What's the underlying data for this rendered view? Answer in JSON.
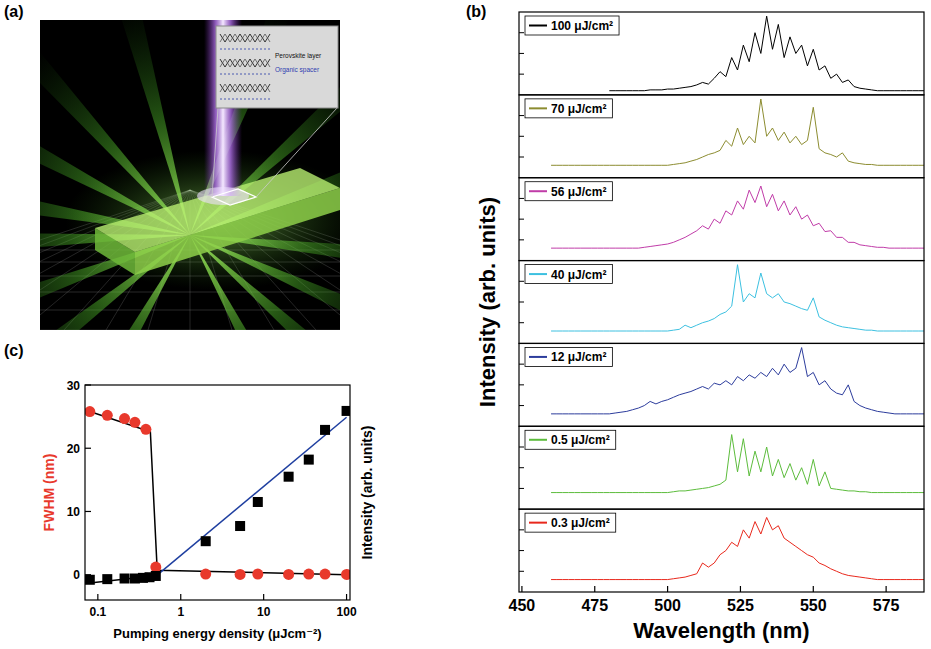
{
  "illustration": {
    "panel_label": "(a)",
    "inset_labels": [
      "Perovskite layer",
      "Organic spacer"
    ]
  },
  "chart_data": [
    {
      "type": "line",
      "panel_label": "(b)",
      "x_label": "Wavelength (nm)",
      "y_label": "Intensity (arb. units)",
      "xlim": [
        449,
        588
      ],
      "xticks": [
        450,
        475,
        500,
        525,
        550,
        575
      ],
      "ylim": [
        0,
        1
      ],
      "yticks": [
        0.25,
        0.5,
        0.75
      ],
      "tick_labels": "x",
      "grid": false,
      "legend": "upper left",
      "x": [
        460,
        462,
        464,
        466,
        468,
        470,
        472,
        474,
        476,
        478,
        480,
        482,
        484,
        486,
        488,
        490,
        492,
        494,
        496,
        498,
        500,
        502,
        504,
        506,
        508,
        510,
        512,
        514,
        516,
        518,
        520,
        522,
        524,
        526,
        528,
        530,
        532,
        534,
        536,
        538,
        540,
        542,
        544,
        546,
        548,
        550,
        552,
        554,
        556,
        558,
        560,
        562,
        564,
        566,
        568,
        570,
        572,
        574,
        576,
        578,
        580,
        582,
        584,
        586,
        588
      ],
      "series": [
        {
          "name": "100 μJ/cm²",
          "color": "#000000",
          "values": [
            null,
            null,
            null,
            null,
            null,
            null,
            null,
            null,
            null,
            null,
            0.05,
            0.05,
            0.05,
            0.05,
            0.05,
            0.05,
            0.05,
            0.06,
            0.06,
            0.06,
            0.07,
            0.07,
            0.08,
            0.09,
            0.1,
            0.12,
            0.15,
            0.13,
            0.2,
            0.28,
            0.22,
            0.45,
            0.3,
            0.6,
            0.4,
            0.75,
            0.5,
            0.95,
            0.55,
            0.85,
            0.45,
            0.7,
            0.5,
            0.6,
            0.35,
            0.55,
            0.3,
            0.35,
            0.2,
            0.25,
            0.15,
            0.18,
            0.1,
            0.08,
            0.07,
            0.06,
            0.05,
            0.05,
            0.05,
            0.05,
            0.05,
            0.05,
            0.05,
            0.05,
            0.05
          ]
        },
        {
          "name": "70 μJ/cm²",
          "color": "#8c8c30",
          "values": [
            0.15,
            0.15,
            0.15,
            0.15,
            0.15,
            0.15,
            0.15,
            0.15,
            0.15,
            0.15,
            0.15,
            0.15,
            0.15,
            0.15,
            0.15,
            0.15,
            0.15,
            0.15,
            0.15,
            0.15,
            0.15,
            0.16,
            0.17,
            0.18,
            0.2,
            0.22,
            0.25,
            0.28,
            0.3,
            0.33,
            0.45,
            0.38,
            0.6,
            0.4,
            0.5,
            0.42,
            0.95,
            0.5,
            0.6,
            0.45,
            0.55,
            0.42,
            0.5,
            0.4,
            0.45,
            0.85,
            0.35,
            0.3,
            0.28,
            0.25,
            0.3,
            0.2,
            0.18,
            0.17,
            0.16,
            0.16,
            0.15,
            0.15,
            0.15,
            0.15,
            0.15,
            0.15,
            0.15,
            0.15,
            0.15
          ]
        },
        {
          "name": "56 μJ/cm²",
          "color": "#c03ca8",
          "values": [
            0.15,
            0.15,
            0.15,
            0.15,
            0.15,
            0.15,
            0.15,
            0.15,
            0.15,
            0.15,
            0.15,
            0.15,
            0.15,
            0.15,
            0.15,
            0.15,
            0.16,
            0.17,
            0.18,
            0.19,
            0.2,
            0.22,
            0.25,
            0.28,
            0.32,
            0.36,
            0.42,
            0.38,
            0.5,
            0.45,
            0.6,
            0.55,
            0.72,
            0.62,
            0.85,
            0.7,
            0.9,
            0.65,
            0.8,
            0.6,
            0.72,
            0.55,
            0.65,
            0.5,
            0.55,
            0.42,
            0.45,
            0.35,
            0.36,
            0.28,
            0.28,
            0.22,
            0.22,
            0.19,
            0.18,
            0.17,
            0.16,
            0.16,
            0.15,
            0.15,
            0.15,
            0.15,
            0.15,
            0.15,
            0.15
          ]
        },
        {
          "name": "40 μJ/cm²",
          "color": "#3cc0e0",
          "values": [
            0.15,
            0.15,
            0.15,
            0.15,
            0.15,
            0.15,
            0.15,
            0.15,
            0.15,
            0.15,
            0.15,
            0.15,
            0.15,
            0.15,
            0.15,
            0.15,
            0.15,
            0.15,
            0.15,
            0.15,
            0.15,
            0.16,
            0.17,
            0.22,
            0.19,
            0.22,
            0.25,
            0.27,
            0.3,
            0.35,
            0.38,
            0.45,
            0.95,
            0.5,
            0.6,
            0.55,
            0.85,
            0.6,
            0.55,
            0.6,
            0.5,
            0.48,
            0.45,
            0.42,
            0.4,
            0.55,
            0.32,
            0.28,
            0.25,
            0.22,
            0.2,
            0.19,
            0.18,
            0.17,
            0.16,
            0.16,
            0.15,
            0.15,
            0.15,
            0.15,
            0.15,
            0.15,
            0.15,
            0.15,
            0.15
          ]
        },
        {
          "name": "12 μJ/cm²",
          "color": "#2c3c9c",
          "values": [
            0.15,
            0.15,
            0.15,
            0.15,
            0.15,
            0.15,
            0.15,
            0.15,
            0.15,
            0.15,
            0.15,
            0.16,
            0.17,
            0.18,
            0.2,
            0.22,
            0.25,
            0.3,
            0.27,
            0.3,
            0.32,
            0.35,
            0.38,
            0.4,
            0.42,
            0.45,
            0.48,
            0.45,
            0.52,
            0.5,
            0.55,
            0.5,
            0.6,
            0.55,
            0.62,
            0.58,
            0.65,
            0.6,
            0.7,
            0.62,
            0.75,
            0.65,
            0.7,
            0.95,
            0.6,
            0.65,
            0.5,
            0.55,
            0.45,
            0.4,
            0.38,
            0.5,
            0.3,
            0.25,
            0.22,
            0.2,
            0.18,
            0.17,
            0.16,
            0.15,
            0.15,
            0.15,
            0.15,
            0.15,
            0.15
          ]
        },
        {
          "name": "0.5 μJ/cm²",
          "color": "#5cbc3c",
          "values": [
            0.2,
            0.2,
            0.2,
            0.2,
            0.2,
            0.2,
            0.2,
            0.2,
            0.2,
            0.2,
            0.2,
            0.2,
            0.2,
            0.2,
            0.2,
            0.2,
            0.2,
            0.2,
            0.2,
            0.2,
            0.2,
            0.21,
            0.22,
            0.22,
            0.23,
            0.24,
            0.25,
            0.26,
            0.28,
            0.3,
            0.35,
            0.9,
            0.45,
            0.85,
            0.4,
            0.7,
            0.45,
            0.75,
            0.4,
            0.6,
            0.38,
            0.55,
            0.35,
            0.5,
            0.3,
            0.6,
            0.28,
            0.45,
            0.25,
            0.24,
            0.23,
            0.22,
            0.22,
            0.21,
            0.21,
            0.2,
            0.2,
            0.2,
            0.2,
            0.2,
            0.2,
            0.2,
            0.2,
            0.2,
            0.2
          ]
        },
        {
          "name": "0.3 μJ/cm²",
          "color": "#e8281c",
          "values": [
            0.15,
            0.15,
            0.15,
            0.15,
            0.15,
            0.15,
            0.15,
            0.15,
            0.15,
            0.15,
            0.15,
            0.15,
            0.15,
            0.15,
            0.15,
            0.15,
            0.15,
            0.15,
            0.15,
            0.15,
            0.15,
            0.16,
            0.17,
            0.18,
            0.2,
            0.22,
            0.35,
            0.3,
            0.35,
            0.45,
            0.5,
            0.6,
            0.55,
            0.75,
            0.65,
            0.85,
            0.7,
            0.9,
            0.75,
            0.8,
            0.65,
            0.6,
            0.55,
            0.5,
            0.45,
            0.42,
            0.35,
            0.32,
            0.28,
            0.25,
            0.22,
            0.2,
            0.19,
            0.18,
            0.17,
            0.16,
            0.15,
            0.15,
            0.15,
            0.15,
            0.15,
            0.15,
            0.15,
            0.15,
            0.15
          ]
        }
      ]
    },
    {
      "type": "scatter",
      "panel_label": "(c)",
      "log": "x",
      "grid": false,
      "x_label": "Pumping energy density (μJcm⁻²)",
      "y_label": "FWHM (nm)",
      "y2_label": "Intensity (arb. units)",
      "xlim": [
        0.07,
        110
      ],
      "xticks": [
        0.1,
        1,
        10,
        100
      ],
      "ylim": [
        -4,
        30
      ],
      "yticks": [
        0,
        10,
        20,
        30
      ],
      "y2lim": [
        -4,
        30
      ],
      "series": [
        {
          "type": "scatter",
          "marker": "circle",
          "color": "#e8392c",
          "x": [
            0.08,
            0.13,
            0.21,
            0.28,
            0.38,
            0.5,
            2,
            5.2,
            8.5,
            20,
            35,
            55,
            100
          ],
          "values": [
            25.8,
            25.2,
            24.7,
            24.1,
            23,
            1.2,
            0.1,
            0.05,
            0.1,
            0.05,
            0.1,
            0.1,
            0.05
          ]
        },
        {
          "type": "scatter",
          "marker": "square",
          "color": "#000000",
          "axis": "y2",
          "x": [
            0.08,
            0.13,
            0.21,
            0.28,
            0.35,
            0.42,
            0.5,
            2,
            5.2,
            8.5,
            20,
            35,
            55,
            100
          ],
          "values": [
            -0.8,
            -0.7,
            -0.6,
            -0.6,
            -0.5,
            -0.4,
            -0.2,
            5.3,
            7.7,
            11.5,
            15.5,
            18.2,
            22.9,
            25.9
          ]
        },
        {
          "type": "line",
          "color": "#000000",
          "x": [
            0.08,
            0.43,
            0.52,
            100
          ],
          "values": [
            25.8,
            22.6,
            0.7,
            0
          ]
        },
        {
          "type": "line",
          "color": "#000000",
          "axis": "y2",
          "x": [
            0.08,
            0.55
          ],
          "values": [
            -1.3,
            -0.1
          ]
        },
        {
          "type": "line",
          "color": "#1f3fa0",
          "axis": "y2",
          "x": [
            0.55,
            100
          ],
          "values": [
            0.2,
            24.9
          ]
        }
      ]
    }
  ]
}
